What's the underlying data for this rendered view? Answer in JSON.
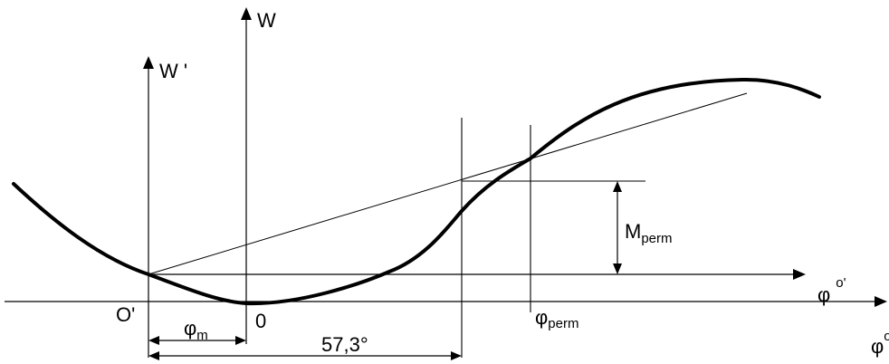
{
  "labels": {
    "w_axis": "W",
    "w_prime_axis": "W '",
    "origin_prime": "O'",
    "origin": "0",
    "phi_prime_axis_main": "φ",
    "phi_prime_axis_sup": "o'",
    "phi_axis_main": "φ",
    "phi_axis_sup": "o",
    "phi_m_main": "φ",
    "phi_m_sub": "m",
    "phi_perm_main": "φ",
    "phi_perm_sub": "perm",
    "m_perm_main": "M",
    "m_perm_sub": "perm",
    "angle_57": "57,3°"
  }
}
